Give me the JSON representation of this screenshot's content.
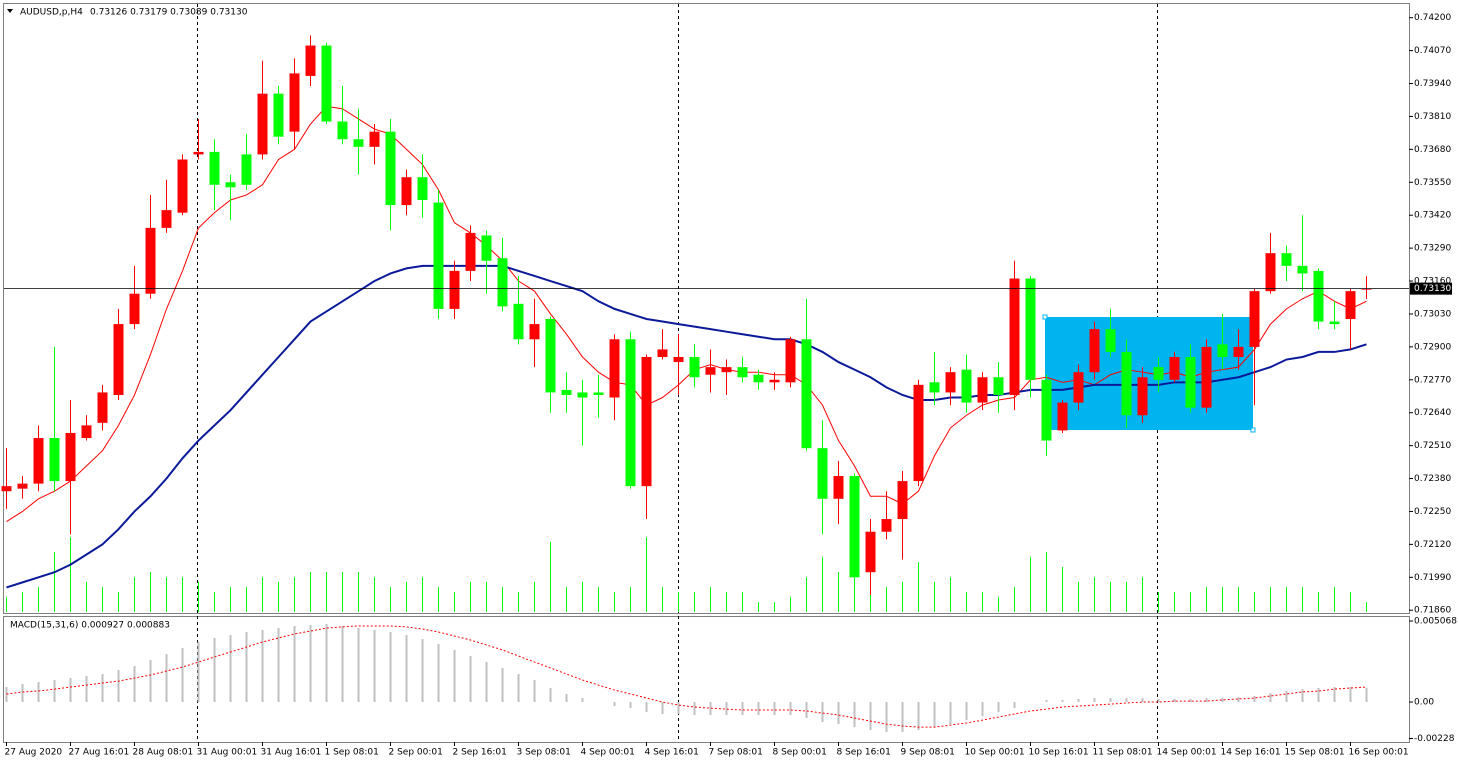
{
  "chart_data": {
    "type": "candlestick",
    "symbol": "AUDUSD,p,H4",
    "quote": "0.73126 0.73179 0.73089 0.73130",
    "bull_color": "#ff0000",
    "bear_color": "#00ff00",
    "categories": [
      "27 Aug 2020",
      null,
      null,
      null,
      "27 Aug 16:01",
      null,
      null,
      null,
      "28 Aug 08:01",
      null,
      null,
      null,
      "31 Aug 00:01",
      null,
      null,
      null,
      "31 Aug 16:01",
      null,
      null,
      null,
      "1 Sep 08:01",
      null,
      null,
      null,
      "2 Sep 00:01",
      null,
      null,
      null,
      "2 Sep 16:01",
      null,
      null,
      null,
      "3 Sep 08:01",
      null,
      null,
      null,
      "4 Sep 00:01",
      null,
      null,
      null,
      "4 Sep 16:01",
      null,
      null,
      null,
      "7 Sep 08:01",
      null,
      null,
      null,
      "8 Sep 00:01",
      null,
      null,
      null,
      "8 Sep 16:01",
      null,
      null,
      null,
      "9 Sep 08:01",
      null,
      null,
      null,
      "10 Sep 00:01",
      null,
      null,
      null,
      "10 Sep 16:01",
      null,
      null,
      null,
      "11 Sep 08:01",
      null,
      null,
      null,
      "14 Sep 00:01",
      null,
      null,
      null,
      "14 Sep 16:01",
      null,
      null,
      null,
      "15 Sep 08:01",
      null,
      null,
      null,
      "16 Sep 00:01",
      null
    ],
    "open": [
      0.7233,
      0.7234,
      0.7236,
      0.7254,
      0.7237,
      0.7254,
      0.726,
      0.7271,
      0.7299,
      0.7311,
      0.7337,
      0.7343,
      0.7366,
      0.7367,
      0.7355,
      0.7366,
      0.7366,
      0.739,
      0.7375,
      0.7397,
      0.7409,
      0.7379,
      0.7372,
      0.7369,
      0.7375,
      0.7346,
      0.7357,
      0.7347,
      0.7305,
      0.732,
      0.7334,
      0.7325,
      0.7307,
      0.7293,
      0.7301,
      0.7273,
      0.7272,
      0.7272,
      0.727,
      0.7293,
      0.7235,
      0.7286,
      0.7284,
      0.7286,
      0.7279,
      0.728,
      0.7282,
      0.7279,
      0.7276,
      0.7276,
      0.7293,
      0.725,
      0.723,
      0.7239,
      0.7201,
      0.7217,
      0.7222,
      0.7237,
      0.7276,
      0.7272,
      0.7281,
      0.7268,
      0.7278,
      0.7271,
      0.7317,
      0.7277,
      0.7257,
      0.7268,
      0.728,
      0.7297,
      0.7288,
      0.7263,
      0.7282,
      0.7277,
      0.7286,
      0.7266,
      0.7291,
      0.7286,
      0.729,
      0.7312,
      0.7327,
      0.7322,
      0.732,
      0.73,
      0.7301,
      0.73126
    ],
    "high": [
      0.725,
      0.7239,
      0.7259,
      0.729,
      0.7269,
      0.7263,
      0.7275,
      0.7305,
      0.7322,
      0.735,
      0.7356,
      0.7366,
      0.738,
      0.7372,
      0.7358,
      0.7374,
      0.7403,
      0.7393,
      0.7404,
      0.7413,
      0.741,
      0.7393,
      0.7384,
      0.7378,
      0.738,
      0.736,
      0.7366,
      0.7352,
      0.7324,
      0.7338,
      0.7336,
      0.7333,
      0.7318,
      0.7309,
      0.7302,
      0.728,
      0.7277,
      0.7279,
      0.7295,
      0.7296,
      0.7287,
      0.7297,
      0.7295,
      0.7291,
      0.7289,
      0.7285,
      0.7286,
      0.7281,
      0.728,
      0.7294,
      0.7309,
      0.7261,
      0.7245,
      0.724,
      0.7222,
      0.7233,
      0.7241,
      0.7277,
      0.7288,
      0.7282,
      0.7287,
      0.728,
      0.7284,
      0.7324,
      0.7318,
      0.7279,
      0.7269,
      0.7283,
      0.73,
      0.7305,
      0.7293,
      0.7282,
      0.7286,
      0.7288,
      0.7291,
      0.7293,
      0.7303,
      0.7297,
      0.7313,
      0.7335,
      0.733,
      0.7342,
      0.7321,
      0.7308,
      0.7313,
      0.73179
    ],
    "low": [
      0.7226,
      0.723,
      0.7233,
      0.7233,
      0.7216,
      0.7253,
      0.7257,
      0.7269,
      0.7297,
      0.7309,
      0.7335,
      0.7342,
      0.7364,
      0.7344,
      0.734,
      0.7352,
      0.7364,
      0.737,
      0.7368,
      0.7393,
      0.7378,
      0.737,
      0.7358,
      0.7362,
      0.7336,
      0.7342,
      0.7341,
      0.7301,
      0.7301,
      0.7316,
      0.7311,
      0.7304,
      0.7291,
      0.7282,
      0.7264,
      0.7264,
      0.7251,
      0.7262,
      0.7261,
      0.7234,
      0.7222,
      0.7285,
      0.7271,
      0.7274,
      0.7272,
      0.7271,
      0.7276,
      0.7273,
      0.7273,
      0.7274,
      0.7249,
      0.7216,
      0.722,
      0.7198,
      0.7192,
      0.7214,
      0.7206,
      0.7235,
      0.7267,
      0.7267,
      0.7264,
      0.7265,
      0.7264,
      0.7265,
      0.727,
      0.7247,
      0.7256,
      0.7265,
      0.7277,
      0.7286,
      0.7258,
      0.726,
      0.7272,
      0.7276,
      0.7264,
      0.7264,
      0.7281,
      0.7281,
      0.7267,
      0.7311,
      0.7316,
      0.7312,
      0.7297,
      0.7297,
      0.7289,
      0.73089
    ],
    "close": [
      0.7235,
      0.7236,
      0.7254,
      0.7237,
      0.7256,
      0.7259,
      0.7272,
      0.7299,
      0.7311,
      0.7337,
      0.7344,
      0.7364,
      0.7367,
      0.7354,
      0.7353,
      0.7354,
      0.739,
      0.7373,
      0.7398,
      0.7409,
      0.7379,
      0.7372,
      0.7369,
      0.7375,
      0.7346,
      0.7357,
      0.7348,
      0.7305,
      0.732,
      0.7335,
      0.7324,
      0.7306,
      0.7293,
      0.7299,
      0.7272,
      0.7271,
      0.727,
      0.7271,
      0.7293,
      0.7235,
      0.7286,
      0.7289,
      0.7286,
      0.7278,
      0.7282,
      0.7282,
      0.7278,
      0.7276,
      0.7277,
      0.7293,
      0.725,
      0.723,
      0.7239,
      0.7199,
      0.7217,
      0.7222,
      0.7237,
      0.7275,
      0.7272,
      0.728,
      0.7268,
      0.7278,
      0.7271,
      0.7317,
      0.7277,
      0.7253,
      0.7268,
      0.728,
      0.7297,
      0.7288,
      0.7263,
      0.7278,
      0.7277,
      0.7286,
      0.7266,
      0.729,
      0.7286,
      0.729,
      0.7312,
      0.7327,
      0.7322,
      0.7319,
      0.73,
      0.7299,
      0.7312,
      0.7313
    ],
    "moving_averages": [
      {
        "color": "#ff0000",
        "width": 1,
        "values": [
          0.7221,
          0.7225,
          0.723,
          0.7233,
          0.7237,
          0.7243,
          0.7249,
          0.7259,
          0.7271,
          0.7287,
          0.7305,
          0.732,
          0.7337,
          0.7343,
          0.7348,
          0.735,
          0.7354,
          0.7364,
          0.7368,
          0.7378,
          0.7385,
          0.7384,
          0.738,
          0.7376,
          0.7374,
          0.7368,
          0.7362,
          0.7352,
          0.7339,
          0.7335,
          0.733,
          0.7324,
          0.7316,
          0.7312,
          0.7303,
          0.7295,
          0.7286,
          0.728,
          0.7276,
          0.7275,
          0.7267,
          0.727,
          0.7275,
          0.7281,
          0.7283,
          0.7281,
          0.728,
          0.728,
          0.7279,
          0.7279,
          0.7275,
          0.7267,
          0.7253,
          0.7243,
          0.7231,
          0.7231,
          0.7228,
          0.7233,
          0.7247,
          0.7258,
          0.7263,
          0.7267,
          0.7269,
          0.727,
          0.7277,
          0.7278,
          0.7276,
          0.7277,
          0.7275,
          0.7279,
          0.7281,
          0.728,
          0.7279,
          0.728,
          0.7278,
          0.728,
          0.7281,
          0.7282,
          0.7289,
          0.7299,
          0.7305,
          0.7309,
          0.7312,
          0.7308,
          0.7305,
          0.7308
        ]
      },
      {
        "color": "#0a1a99",
        "width": 2,
        "values": [
          0.7195,
          0.7197,
          0.7199,
          0.7201,
          0.7204,
          0.7208,
          0.7212,
          0.7218,
          0.7225,
          0.7231,
          0.7238,
          0.7246,
          0.7253,
          0.7259,
          0.7265,
          0.7272,
          0.7279,
          0.7286,
          0.7293,
          0.73,
          0.7304,
          0.7308,
          0.7312,
          0.7316,
          0.7319,
          0.7321,
          0.7322,
          0.7322,
          0.7322,
          0.7322,
          0.7322,
          0.7322,
          0.732,
          0.7318,
          0.7316,
          0.7314,
          0.7312,
          0.7308,
          0.7305,
          0.7303,
          0.7301,
          0.73,
          0.7299,
          0.7298,
          0.7297,
          0.7296,
          0.7295,
          0.7294,
          0.7293,
          0.7293,
          0.7291,
          0.7288,
          0.7284,
          0.7281,
          0.7278,
          0.7274,
          0.7271,
          0.7269,
          0.7269,
          0.727,
          0.727,
          0.7271,
          0.7271,
          0.7272,
          0.7273,
          0.7273,
          0.7273,
          0.7274,
          0.7275,
          0.7275,
          0.7275,
          0.7275,
          0.7275,
          0.7276,
          0.7276,
          0.7276,
          0.7277,
          0.7278,
          0.728,
          0.7282,
          0.7285,
          0.7286,
          0.7288,
          0.7288,
          0.7289,
          0.7291
        ]
      }
    ],
    "volume_color": "#00ff00",
    "volume": [
      15,
      20,
      25,
      60,
      75,
      30,
      25,
      20,
      35,
      40,
      35,
      35,
      30,
      20,
      25,
      25,
      35,
      30,
      35,
      40,
      40,
      40,
      40,
      35,
      25,
      30,
      35,
      25,
      20,
      30,
      30,
      25,
      20,
      30,
      70,
      25,
      30,
      25,
      20,
      25,
      75,
      25,
      20,
      20,
      25,
      20,
      20,
      10,
      10,
      15,
      35,
      55,
      40,
      40,
      60,
      25,
      30,
      50,
      30,
      35,
      20,
      20,
      15,
      25,
      55,
      60,
      45,
      30,
      35,
      30,
      30,
      35,
      20,
      20,
      20,
      25,
      25,
      25,
      20,
      25,
      25,
      25,
      20,
      25,
      20,
      10
    ],
    "ylim": [
      0.71849,
      0.74258
    ],
    "yticks": [
      {
        "value": 0.742,
        "label": "0.74200"
      },
      {
        "value": 0.7407,
        "label": "0.74070"
      },
      {
        "value": 0.7394,
        "label": "0.73940"
      },
      {
        "value": 0.7381,
        "label": "0.73810"
      },
      {
        "value": 0.7368,
        "label": "0.73680"
      },
      {
        "value": 0.7355,
        "label": "0.73550"
      },
      {
        "value": 0.7342,
        "label": "0.73420"
      },
      {
        "value": 0.7329,
        "label": "0.73290"
      },
      {
        "value": 0.7316,
        "label": "0.73160"
      },
      {
        "value": 0.7303,
        "label": "0.73030"
      },
      {
        "value": 0.729,
        "label": "0.72900"
      },
      {
        "value": 0.7277,
        "label": "0.72770"
      },
      {
        "value": 0.7264,
        "label": "0.72640"
      },
      {
        "value": 0.7251,
        "label": "0.72510"
      },
      {
        "value": 0.7238,
        "label": "0.72380"
      },
      {
        "value": 0.7225,
        "label": "0.72250"
      },
      {
        "value": 0.7212,
        "label": "0.72120"
      },
      {
        "value": 0.7199,
        "label": "0.71990"
      },
      {
        "value": 0.7186,
        "label": "0.71860"
      }
    ],
    "last_price": {
      "value": 0.7313,
      "label": "0.73130"
    },
    "macd": {
      "label": "MACD(15,31,6) 0.000927 0.000883",
      "histogram_color": "#c0c0c0",
      "signal_color": "#ff0000",
      "histogram": [
        0.00094,
        0.00113,
        0.00125,
        0.00138,
        0.0015,
        0.00163,
        0.00175,
        0.002,
        0.00225,
        0.00263,
        0.003,
        0.00338,
        0.00376,
        0.00401,
        0.00419,
        0.00438,
        0.00451,
        0.00463,
        0.00476,
        0.00482,
        0.00488,
        0.00476,
        0.00463,
        0.00451,
        0.00438,
        0.00419,
        0.00394,
        0.00363,
        0.00326,
        0.00288,
        0.0025,
        0.00213,
        0.00175,
        0.00138,
        0.00088,
        0.0005,
        0.00025,
        0,
        -0.00025,
        -0.00038,
        -0.00063,
        -0.00075,
        -0.00075,
        -0.00081,
        -0.00081,
        -0.00081,
        -0.00081,
        -0.00081,
        -0.00081,
        -0.00081,
        -0.001,
        -0.00125,
        -0.00138,
        -0.00157,
        -0.00175,
        -0.00188,
        -0.00188,
        -0.00175,
        -0.00157,
        -0.00138,
        -0.00113,
        -0.00088,
        -0.00063,
        -0.00038,
        0,
        0.00013,
        0.00013,
        0.00019,
        0.00025,
        0.00025,
        0.00025,
        0.00025,
        0.00019,
        0.00019,
        0.00019,
        0.00025,
        0.00025,
        0.00031,
        0.00038,
        0.00056,
        0.00069,
        0.00081,
        0.00088,
        0.00094,
        0.00094,
        0.00088
      ],
      "signal": [
        0.0005,
        0.00063,
        0.00069,
        0.00081,
        0.00094,
        0.00106,
        0.00119,
        0.00131,
        0.0015,
        0.00169,
        0.00194,
        0.00219,
        0.0025,
        0.00282,
        0.00313,
        0.00344,
        0.00376,
        0.00401,
        0.00426,
        0.00444,
        0.00463,
        0.0047,
        0.00476,
        0.00476,
        0.00476,
        0.0047,
        0.00457,
        0.00438,
        0.00413,
        0.00388,
        0.00357,
        0.00326,
        0.00288,
        0.0025,
        0.00213,
        0.00175,
        0.00138,
        0.00106,
        0.00075,
        0.0005,
        0.00025,
        0,
        -0.00019,
        -0.00031,
        -0.00038,
        -0.00044,
        -0.0005,
        -0.0005,
        -0.0005,
        -0.0005,
        -0.00056,
        -0.00069,
        -0.00081,
        -0.001,
        -0.00119,
        -0.00138,
        -0.0015,
        -0.00157,
        -0.00157,
        -0.00144,
        -0.00131,
        -0.00113,
        -0.00094,
        -0.00075,
        -0.00056,
        -0.00044,
        -0.00031,
        -0.00025,
        -0.00019,
        -0.00013,
        -6e-05,
        0,
        0,
        6e-05,
        6e-05,
        6e-05,
        0.00013,
        0.00019,
        0.00025,
        0.00038,
        0.0005,
        0.00063,
        0.00069,
        0.00081,
        0.00088,
        0.00094
      ],
      "ylim": [
        -0.0025,
        0.00532
      ],
      "yticks": [
        0.005068,
        {
          "value": 0,
          "label": "0.00"
        },
        -0.00228
      ]
    }
  }
}
